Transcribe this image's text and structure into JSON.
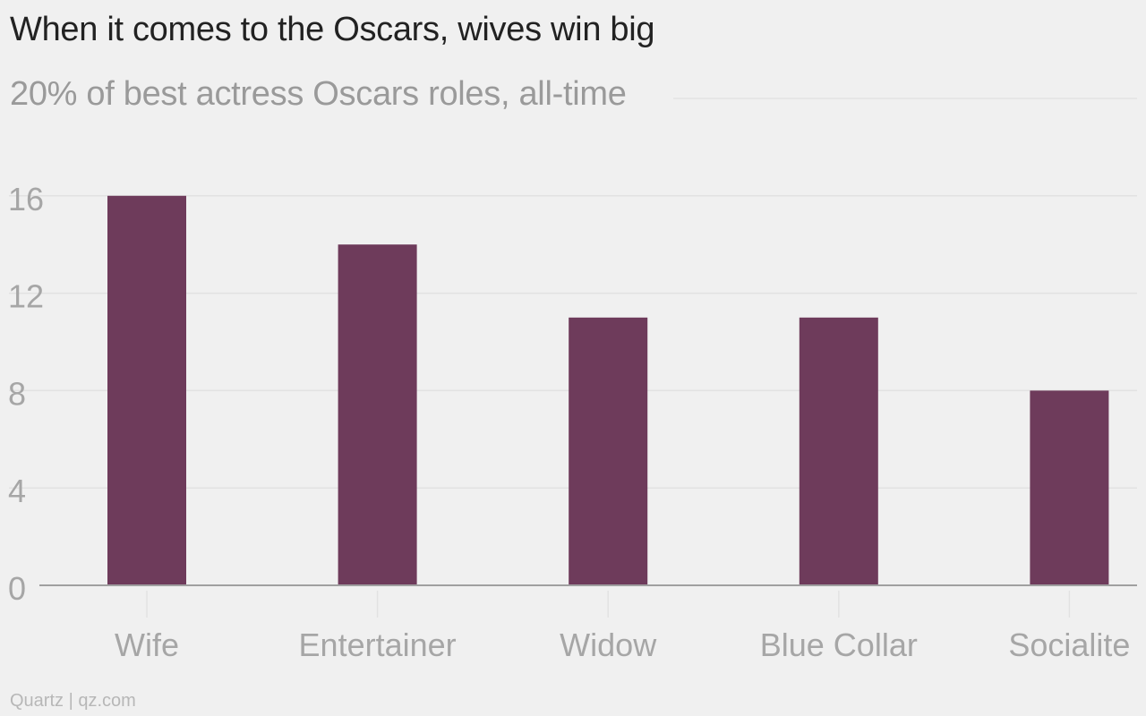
{
  "title": "When it comes to the Oscars, wives win big",
  "subtitle": "20% of best actress Oscars roles, all-time",
  "credit": "Quartz | qz.com",
  "colors": {
    "bar": "#6e3b5b",
    "grid": "#e2e2e2",
    "axis": "#a0a0a0",
    "tick_label": "#a6a6a6",
    "background": "#f0f0f0"
  },
  "chart_data": {
    "type": "bar",
    "categories": [
      "Wife",
      "Entertainer",
      "Widow",
      "Blue Collar",
      "Socialite"
    ],
    "values": [
      16,
      14,
      11,
      11,
      8
    ],
    "y_ticks": [
      0,
      4,
      8,
      12,
      16
    ],
    "ylim": [
      0,
      20
    ],
    "grid": true,
    "xlabel": "",
    "ylabel": ""
  }
}
